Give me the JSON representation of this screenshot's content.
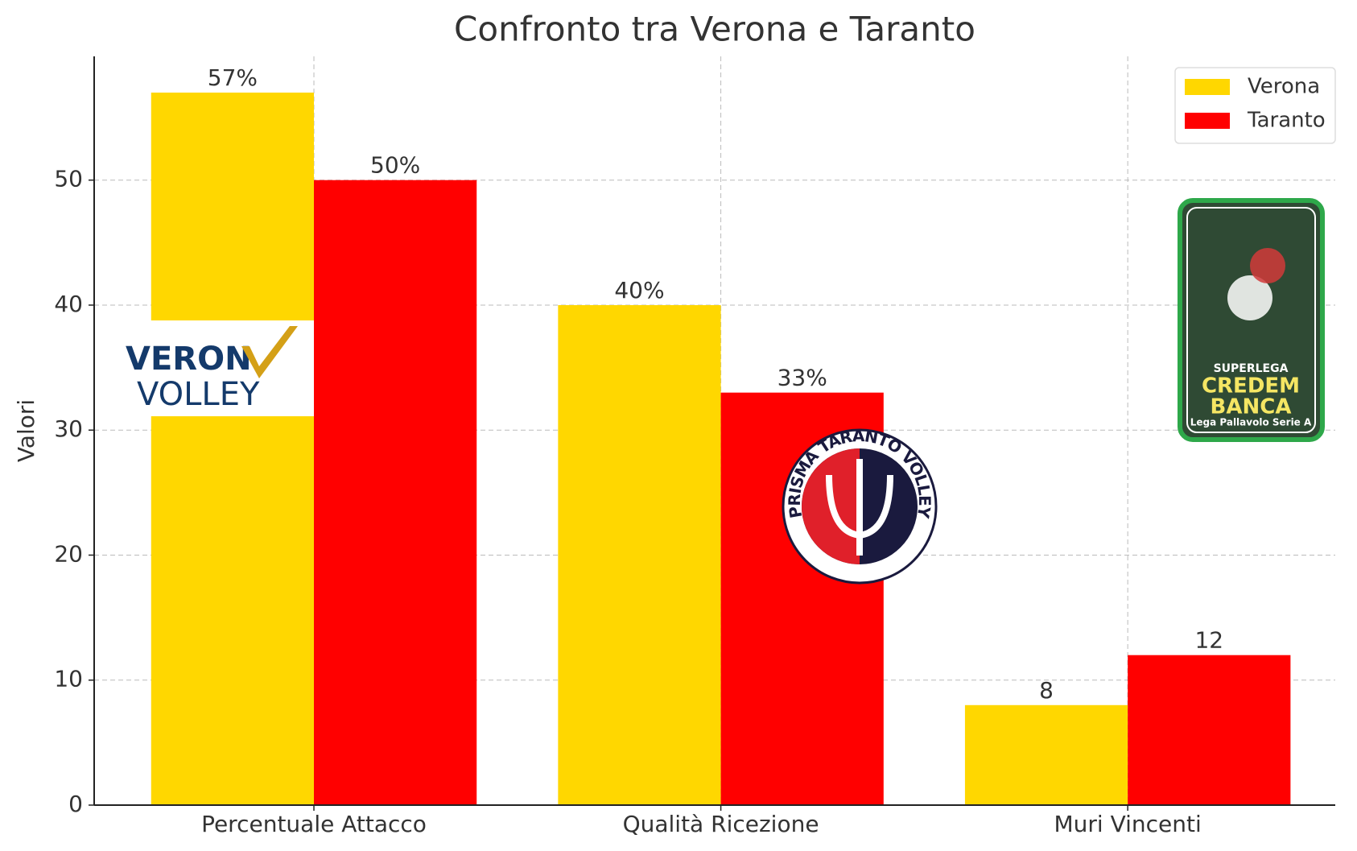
{
  "chart_data": {
    "type": "bar",
    "title": "Confronto tra Verona e Taranto",
    "y_label": "Valori",
    "categories": [
      "Percentuale Attacco",
      "Qualità Ricezione",
      "Muri Vincenti"
    ],
    "series": [
      {
        "name": "Verona",
        "color": "#FFD700",
        "values": [
          57,
          40,
          8
        ],
        "value_labels": [
          "57%",
          "40%",
          "8"
        ]
      },
      {
        "name": "Taranto",
        "color": "#FF0000",
        "values": [
          50,
          33,
          12
        ],
        "value_labels": [
          "50%",
          "33%",
          "12"
        ]
      }
    ],
    "ylim": [
      0,
      59.9
    ],
    "yticks": [
      0,
      10,
      20,
      30,
      40,
      50
    ],
    "grid": true,
    "legend": "upper right",
    "logos": {
      "verona": [
        "VERON",
        "VOLLEY"
      ],
      "taranto": "PRISMA TARANTO VOLLEY",
      "superlega": [
        "SUPERLEGA",
        "CREDEM",
        "BANCA",
        "Lega Pallavolo Serie A"
      ]
    }
  }
}
